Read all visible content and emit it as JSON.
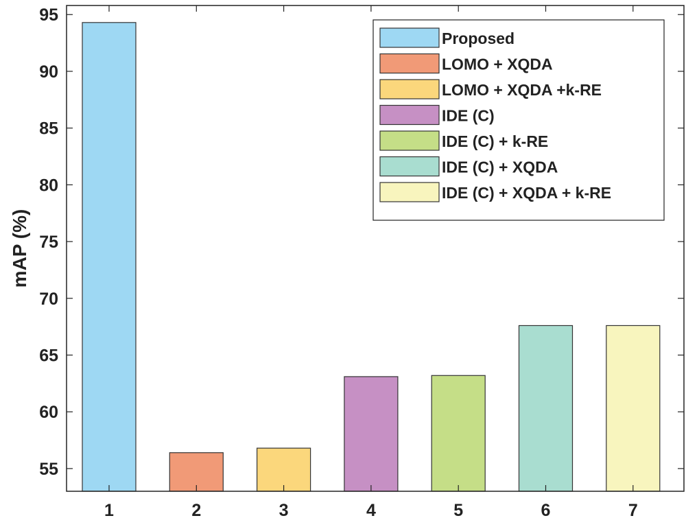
{
  "chart_data": {
    "type": "bar",
    "title": "",
    "xlabel": "",
    "ylabel": "mAP (%)",
    "ylim": [
      53,
      95.8
    ],
    "yticks": [
      55,
      60,
      65,
      70,
      75,
      80,
      85,
      90,
      95
    ],
    "categories": [
      "1",
      "2",
      "3",
      "4",
      "5",
      "6",
      "7"
    ],
    "values": [
      94.3,
      56.4,
      56.8,
      63.1,
      63.2,
      67.6,
      67.6
    ],
    "colors": [
      "#9ed8f3",
      "#f19a77",
      "#fbd77c",
      "#c690c4",
      "#c5de87",
      "#a9ddd0",
      "#f8f5be"
    ],
    "legend": {
      "position": "top-right",
      "entries": [
        "Proposed",
        "LOMO + XQDA",
        "LOMO + XQDA +k-RE",
        "IDE (C)",
        "IDE (C) + k-RE",
        "IDE (C) + XQDA",
        "IDE (C) + XQDA + k-RE"
      ]
    },
    "grid": false
  }
}
